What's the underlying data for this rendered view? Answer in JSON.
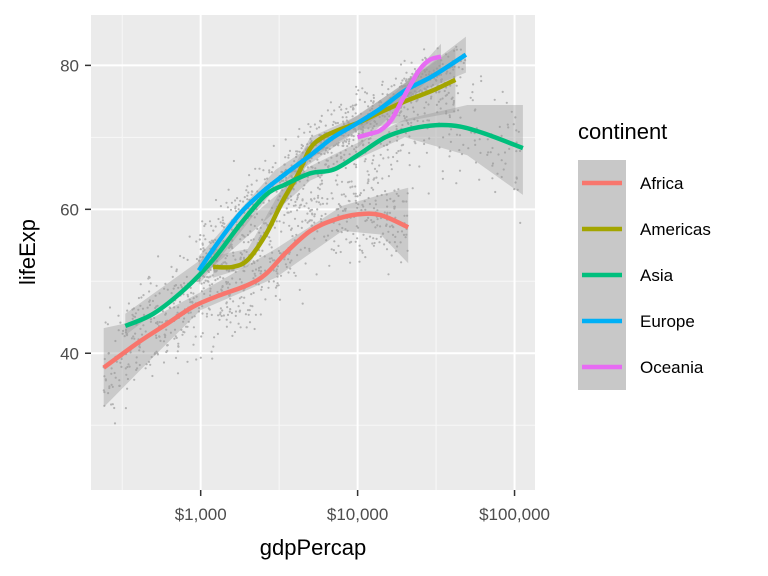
{
  "chart_data": {
    "type": "scatter",
    "xlabel": "gdpPercap",
    "ylabel": "lifeExp",
    "x_scale": "log10",
    "xlim": [
      200,
      135000
    ],
    "ylim": [
      21,
      87
    ],
    "x_ticks": [
      1000,
      10000,
      100000
    ],
    "x_tick_labels": [
      "$1,000",
      "$10,000",
      "$100,000"
    ],
    "y_ticks": [
      40,
      60,
      80
    ],
    "y_tick_labels": [
      "40",
      "60",
      "80"
    ],
    "grid": true,
    "legend": {
      "title": "continent",
      "position": "right"
    },
    "points_color": "#b3b3b3",
    "series": [
      {
        "name": "Africa",
        "color": "#F8766D",
        "x": [
          241,
          400,
          600,
          900,
          1300,
          2000,
          2600,
          3500,
          5000,
          7000,
          10000,
          14000,
          21000
        ],
        "y": [
          38,
          41.5,
          44,
          46.5,
          48,
          49.5,
          51,
          54,
          57,
          58.5,
          59.3,
          59.2,
          57.5
        ],
        "band": [
          [
            241,
            32.5,
            43.5
          ],
          [
            500,
            39.5,
            45
          ],
          [
            1000,
            46,
            48.5
          ],
          [
            3000,
            50.5,
            54.5
          ],
          [
            8000,
            57,
            60.5
          ],
          [
            14000,
            56.5,
            62
          ],
          [
            21000,
            52.5,
            63
          ]
        ]
      },
      {
        "name": "Americas",
        "color": "#A3A500",
        "x": [
          1200,
          1600,
          2000,
          2600,
          3300,
          4200,
          5000,
          6000,
          7500,
          10000,
          14000,
          20000,
          30000,
          42000
        ],
        "y": [
          52,
          52,
          53,
          56.5,
          61,
          65,
          68.5,
          70,
          71,
          72,
          73.5,
          75,
          76.5,
          78
        ],
        "band": [
          [
            1200,
            50.5,
            53.5
          ],
          [
            2000,
            52,
            54.5
          ],
          [
            5000,
            67,
            70
          ],
          [
            10000,
            71,
            73
          ],
          [
            42000,
            73.5,
            82.5
          ]
        ]
      },
      {
        "name": "Asia",
        "color": "#00BF7D",
        "x": [
          331,
          500,
          800,
          1200,
          1800,
          2600,
          3500,
          5000,
          7000,
          10000,
          15000,
          22000,
          32000,
          45000,
          65000,
          113000
        ],
        "y": [
          43.8,
          45.5,
          49,
          53,
          58,
          62,
          63.5,
          65,
          65.5,
          67.5,
          70,
          71.2,
          71.7,
          71.5,
          70.5,
          68.5
        ],
        "band": [
          [
            331,
            42.5,
            45.5
          ],
          [
            1000,
            50.5,
            53
          ],
          [
            5000,
            64,
            66
          ],
          [
            20000,
            70,
            72.5
          ],
          [
            50000,
            67.5,
            74.5
          ],
          [
            113000,
            62,
            74.5
          ]
        ]
      },
      {
        "name": "Europe",
        "color": "#00B0F6",
        "x": [
          973,
          1300,
          1800,
          2500,
          3500,
          5000,
          7000,
          10000,
          14000,
          20000,
          30000,
          49000
        ],
        "y": [
          51.5,
          55.5,
          59.5,
          62.5,
          65,
          67.5,
          70,
          72,
          74,
          76.5,
          78.5,
          81.5
        ],
        "band": [
          [
            973,
            49.5,
            53.5
          ],
          [
            3000,
            63,
            65.5
          ],
          [
            20000,
            75.5,
            77.5
          ],
          [
            49000,
            79,
            84
          ]
        ]
      },
      {
        "name": "Oceania",
        "color": "#E76BF3",
        "x": [
          10000,
          12000,
          14000,
          16500,
          19000,
          22000,
          25000,
          29000,
          34000
        ],
        "y": [
          70,
          70.5,
          71,
          72.5,
          75,
          77.5,
          79.5,
          80.8,
          81.2
        ],
        "band": [
          [
            10000,
            68.5,
            71.5
          ],
          [
            20000,
            75,
            77.5
          ],
          [
            34000,
            79.5,
            83
          ]
        ]
      }
    ]
  }
}
